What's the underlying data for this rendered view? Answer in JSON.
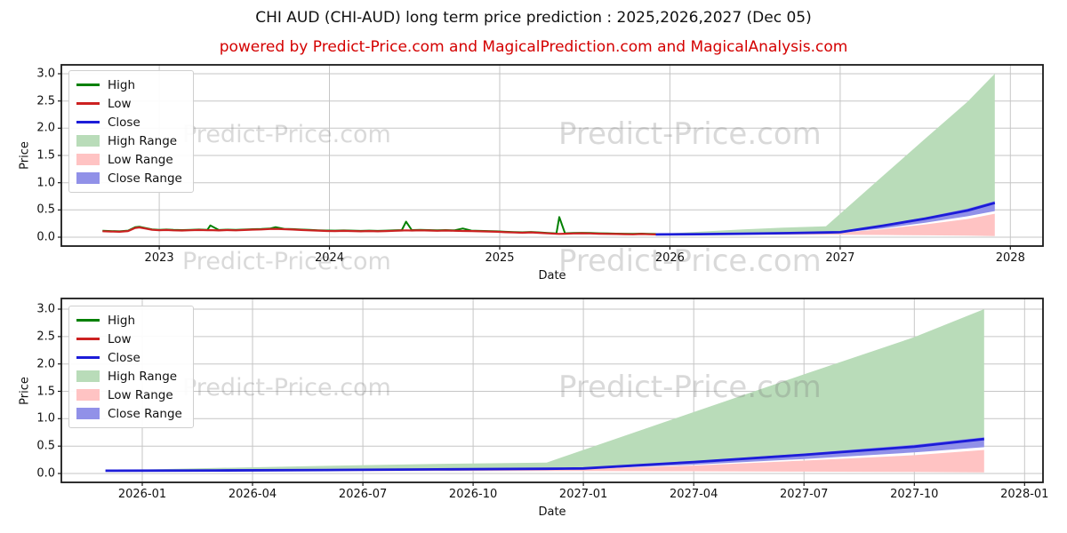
{
  "title": "CHI AUD (CHI-AUD) long term price prediction : 2025,2026,2027 (Dec 05)",
  "subtitle": "powered by Predict-Price.com and MagicalPrediction.com and MagicalAnalysis.com",
  "watermark": {
    "text": "Predict-Price.com"
  },
  "colors": {
    "high_line": "#018001",
    "low_line": "#cc2121",
    "close_line": "#1c1cd8",
    "high_range_fill": "#b9dcb9",
    "low_range_fill": "#ffc3c3",
    "close_range_fill": "#9191e8",
    "grid": "#c6c6c6",
    "spine": "#1a1a1a",
    "subtitle_red": "#d40000"
  },
  "legend": {
    "items": [
      {
        "label": "High",
        "type": "line",
        "color": "#018001"
      },
      {
        "label": "Low",
        "type": "line",
        "color": "#cc2121"
      },
      {
        "label": "Close",
        "type": "line",
        "color": "#1c1cd8"
      },
      {
        "label": "High Range",
        "type": "patch",
        "color": "#b9dcb9"
      },
      {
        "label": "Low Range",
        "type": "patch",
        "color": "#ffc3c3"
      },
      {
        "label": "Close Range",
        "type": "patch",
        "color": "#9191e8"
      }
    ]
  },
  "chart_data": [
    {
      "type": "line",
      "id": "top",
      "xlabel": "Date",
      "ylabel": "Price",
      "x_unit": "months since 2022-01",
      "xlim": [
        5.1,
        74.3
      ],
      "ylim": [
        -0.163,
        3.163
      ],
      "grid": true,
      "legend_position": "upper-left",
      "yticks": [
        {
          "v": 0.0,
          "label": "0.0"
        },
        {
          "v": 0.5,
          "label": "0.5"
        },
        {
          "v": 1.0,
          "label": "1.0"
        },
        {
          "v": 1.5,
          "label": "1.5"
        },
        {
          "v": 2.0,
          "label": "2.0"
        },
        {
          "v": 2.5,
          "label": "2.5"
        },
        {
          "v": 3.0,
          "label": "3.0"
        }
      ],
      "xticks": [
        {
          "m": 12,
          "label": "2023"
        },
        {
          "m": 24,
          "label": "2024"
        },
        {
          "m": 36,
          "label": "2025"
        },
        {
          "m": 48,
          "label": "2026"
        },
        {
          "m": 60,
          "label": "2027"
        },
        {
          "m": 72,
          "label": "2028"
        }
      ],
      "historical": {
        "m": [
          8.0,
          8.6,
          9.2,
          9.8,
          10.3,
          10.6,
          11.0,
          11.5,
          12.0,
          12.5,
          13.0,
          13.6,
          14.2,
          14.8,
          15.4,
          15.6,
          16.2,
          16.8,
          17.4,
          18.0,
          18.6,
          19.2,
          19.8,
          20.2,
          20.8,
          21.4,
          22.0,
          22.6,
          23.2,
          23.8,
          24.4,
          25.0,
          25.6,
          26.2,
          26.8,
          27.4,
          28.0,
          28.6,
          29.1,
          29.4,
          29.8,
          30.4,
          31.0,
          31.6,
          32.2,
          32.8,
          33.4,
          34.0,
          34.6,
          35.2,
          35.8,
          36.4,
          37.0,
          37.6,
          38.2,
          38.8,
          39.4,
          40.0,
          40.2,
          40.6,
          41.2,
          41.8,
          42.4,
          43.0,
          43.6,
          44.2,
          44.8,
          45.4,
          46.0,
          46.5,
          47.0
        ],
        "low": [
          0.11,
          0.105,
          0.1,
          0.112,
          0.17,
          0.18,
          0.16,
          0.135,
          0.128,
          0.132,
          0.125,
          0.122,
          0.128,
          0.132,
          0.128,
          0.13,
          0.124,
          0.13,
          0.126,
          0.132,
          0.138,
          0.142,
          0.15,
          0.152,
          0.146,
          0.14,
          0.132,
          0.126,
          0.12,
          0.114,
          0.112,
          0.116,
          0.112,
          0.108,
          0.112,
          0.108,
          0.112,
          0.118,
          0.122,
          0.125,
          0.122,
          0.126,
          0.122,
          0.118,
          0.122,
          0.118,
          0.114,
          0.112,
          0.108,
          0.104,
          0.1,
          0.092,
          0.086,
          0.082,
          0.088,
          0.08,
          0.07,
          0.062,
          0.06,
          0.064,
          0.068,
          0.072,
          0.068,
          0.064,
          0.06,
          0.058,
          0.056,
          0.052,
          0.058,
          0.054,
          0.05
        ],
        "high": [
          0.118,
          0.113,
          0.108,
          0.12,
          0.182,
          0.192,
          0.17,
          0.143,
          0.136,
          0.14,
          0.133,
          0.13,
          0.136,
          0.14,
          0.136,
          0.215,
          0.132,
          0.138,
          0.134,
          0.14,
          0.146,
          0.15,
          0.158,
          0.185,
          0.154,
          0.148,
          0.14,
          0.134,
          0.128,
          0.122,
          0.12,
          0.124,
          0.12,
          0.116,
          0.12,
          0.116,
          0.12,
          0.126,
          0.13,
          0.285,
          0.13,
          0.134,
          0.13,
          0.126,
          0.13,
          0.126,
          0.16,
          0.12,
          0.116,
          0.112,
          0.108,
          0.1,
          0.094,
          0.09,
          0.096,
          0.088,
          0.078,
          0.07,
          0.37,
          0.072,
          0.076,
          0.08,
          0.076,
          0.072,
          0.068,
          0.066,
          0.064,
          0.06,
          0.066,
          0.062,
          0.058
        ]
      },
      "prediction": {
        "m": [
          47.0,
          50.0,
          53.0,
          56.0,
          59.0,
          60.0,
          63.0,
          66.0,
          69.0,
          70.9
        ],
        "close": [
          0.05,
          0.056,
          0.064,
          0.074,
          0.086,
          0.092,
          0.21,
          0.34,
          0.49,
          0.63
        ],
        "close_hi": [
          0.053,
          0.06,
          0.069,
          0.08,
          0.093,
          0.1,
          0.225,
          0.365,
          0.525,
          0.66
        ],
        "close_lo": [
          0.046,
          0.051,
          0.058,
          0.066,
          0.076,
          0.082,
          0.16,
          0.265,
          0.385,
          0.48
        ],
        "low_hi": [
          0.048,
          0.053,
          0.06,
          0.068,
          0.078,
          0.084,
          0.145,
          0.235,
          0.335,
          0.43
        ],
        "low_lo": [
          0.042,
          0.044,
          0.046,
          0.046,
          0.045,
          0.044,
          0.04,
          0.034,
          0.027,
          0.02
        ],
        "high_hi": [
          0.055,
          0.1,
          0.14,
          0.175,
          0.2,
          0.43,
          1.12,
          1.81,
          2.49,
          3.0
        ]
      }
    },
    {
      "type": "line",
      "id": "bottom",
      "xlabel": "Date",
      "ylabel": "Price",
      "x_unit": "months since 2022-01",
      "xlim": [
        45.8,
        72.5
      ],
      "ylim": [
        -0.162,
        3.195
      ],
      "grid": true,
      "legend_position": "upper-left",
      "yticks": [
        {
          "v": 0.0,
          "label": "0.0"
        },
        {
          "v": 0.5,
          "label": "0.5"
        },
        {
          "v": 1.0,
          "label": "1.0"
        },
        {
          "v": 1.5,
          "label": "1.5"
        },
        {
          "v": 2.0,
          "label": "2.0"
        },
        {
          "v": 2.5,
          "label": "2.5"
        },
        {
          "v": 3.0,
          "label": "3.0"
        }
      ],
      "xticks": [
        {
          "m": 48,
          "label": "2026-01"
        },
        {
          "m": 51,
          "label": "2026-04"
        },
        {
          "m": 54,
          "label": "2026-07"
        },
        {
          "m": 57,
          "label": "2026-10"
        },
        {
          "m": 60,
          "label": "2027-01"
        },
        {
          "m": 63,
          "label": "2027-04"
        },
        {
          "m": 66,
          "label": "2027-07"
        },
        {
          "m": 69,
          "label": "2027-10"
        },
        {
          "m": 72,
          "label": "2028-01"
        }
      ],
      "prediction": {
        "m": [
          47.0,
          50.0,
          53.0,
          56.0,
          59.0,
          60.0,
          63.0,
          66.0,
          69.0,
          70.9
        ],
        "close": [
          0.05,
          0.056,
          0.064,
          0.074,
          0.086,
          0.092,
          0.21,
          0.34,
          0.49,
          0.63
        ],
        "close_hi": [
          0.053,
          0.06,
          0.069,
          0.08,
          0.093,
          0.1,
          0.225,
          0.365,
          0.525,
          0.66
        ],
        "close_lo": [
          0.046,
          0.051,
          0.058,
          0.066,
          0.076,
          0.082,
          0.16,
          0.265,
          0.385,
          0.48
        ],
        "low_hi": [
          0.048,
          0.053,
          0.06,
          0.068,
          0.078,
          0.084,
          0.145,
          0.235,
          0.335,
          0.43
        ],
        "low_lo": [
          0.042,
          0.044,
          0.046,
          0.046,
          0.045,
          0.044,
          0.04,
          0.034,
          0.027,
          0.02
        ],
        "high_hi": [
          0.055,
          0.1,
          0.14,
          0.175,
          0.2,
          0.43,
          1.12,
          1.81,
          2.49,
          3.0
        ]
      }
    }
  ]
}
